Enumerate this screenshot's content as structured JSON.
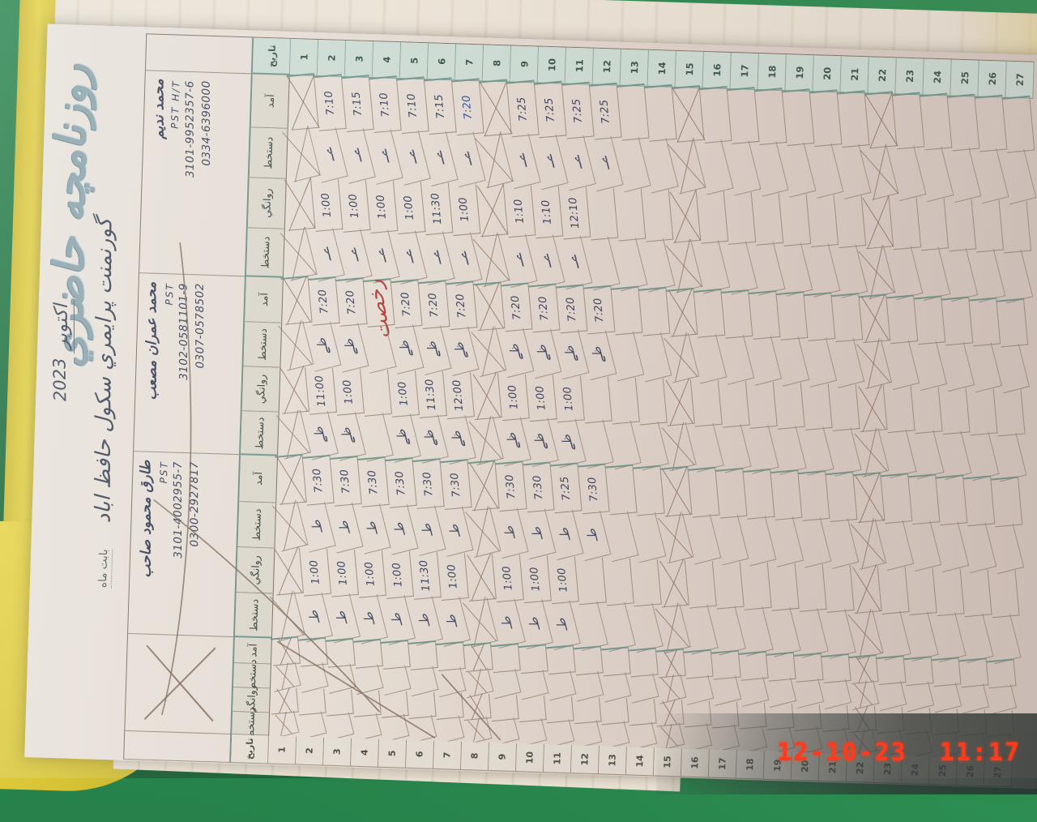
{
  "photo": {
    "timestamp": "12-10-23  11:17"
  },
  "colors": {
    "band_green": "#cdddd5",
    "ink": "#39405c",
    "red_ink": "#b5312c",
    "cover_yellow": "#e4cf38",
    "background_green": "#25824a"
  },
  "page": {
    "title": "روزنامچه حاضري",
    "school_line": "گورنمنت پرايمري سكول حافظ اباد",
    "month_label": "بابت ماه",
    "month_value": "اكتوبر",
    "year": "2023",
    "date_col_label": "تاريخ",
    "field_labels": [
      "آمد",
      "دستخط",
      "روانگي",
      "دستخط"
    ],
    "days_total": 27,
    "sundays": [
      1,
      8,
      15,
      22
    ],
    "red_note": {
      "text": "رخصت",
      "teacher_index": 1,
      "day": 4
    },
    "teachers": [
      {
        "name": "محمد نديم",
        "designation": "PST   H/T",
        "cnic": "3101-9952357-6",
        "mobile": "0334-6396000",
        "sig": "ےـ",
        "in": {
          "2": "7:10",
          "3": "7:15",
          "4": "7:10",
          "5": "7:10",
          "6": "7:15",
          "7": "7:20",
          "9": "7:25",
          "10": "7:25",
          "11": "7:25",
          "12": "7:25"
        },
        "out": {
          "2": "1:00",
          "3": "1:00",
          "4": "1:00",
          "5": "1:00",
          "6": "11:30",
          "7": "1:00",
          "9": "1:10",
          "10": "1:10",
          "11": "12:10"
        },
        "in_ink": {
          "7": "blue"
        }
      },
      {
        "name": "محمد عمران مصعب",
        "designation": "PST",
        "cnic": "3102-0581101-9",
        "mobile": "0307-0578502",
        "sig": "ظے",
        "in": {
          "2": "7:20",
          "3": "7:20",
          "5": "7:20",
          "6": "7:20",
          "7": "7:20",
          "9": "7:20",
          "10": "7:20",
          "11": "7:20",
          "12": "7:20"
        },
        "out": {
          "2": "11:00",
          "3": "1:00",
          "5": "1:00",
          "6": "11:30",
          "7": "12:00",
          "9": "1:00",
          "10": "1:00",
          "11": "1:00"
        },
        "in_ink": {}
      },
      {
        "name": "طارق محمود صاحب",
        "designation": "PST",
        "cnic": "3101-4002955-7",
        "mobile": "0300-2927817",
        "sig": "طـ",
        "in": {
          "2": "7:30",
          "3": "7:30",
          "4": "7:30",
          "5": "7:30",
          "6": "7:30",
          "7": "7:30",
          "9": "7:30",
          "10": "7:30",
          "11": "7:25",
          "12": "7:30"
        },
        "out": {
          "2": "1:00",
          "3": "1:00",
          "4": "1:00",
          "5": "1:00",
          "6": "11:30",
          "7": "1:00",
          "9": "1:00",
          "10": "1:00",
          "11": "1:00"
        },
        "in_ink": {}
      },
      {
        "name": "",
        "designation": "",
        "cnic": "",
        "mobile": "",
        "sig": "",
        "in": {},
        "out": {},
        "in_ink": {},
        "crossed_out": true
      }
    ]
  }
}
